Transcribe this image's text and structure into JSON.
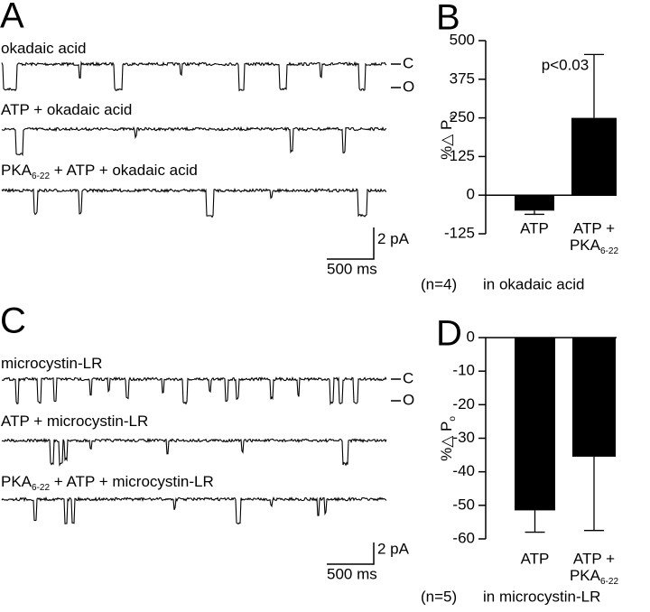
{
  "panel_labels": [
    "A",
    "B",
    "C",
    "D"
  ],
  "traces": [
    {
      "trace_labels": [
        [
          "okadaic acid"
        ],
        [
          "ATP + okadaic acid"
        ],
        [
          "PKA",
          "6-22",
          " + ATP + okadaic acid"
        ]
      ],
      "state_labels": [
        "C",
        "O"
      ],
      "scale": {
        "current": "2 pA",
        "time": "500 ms"
      }
    },
    {
      "trace_labels": [
        [
          "microcystin-LR"
        ],
        [
          "ATP + microcystin-LR"
        ],
        [
          "PKA",
          "6-22",
          " + ATP + microcystin-LR"
        ]
      ],
      "state_labels": [
        "C",
        "O"
      ],
      "scale": {
        "current": "2 pA",
        "time": "500 ms"
      }
    }
  ],
  "chart_data": [
    {
      "type": "bar",
      "categories": [
        [
          "ATP"
        ],
        [
          "ATP +",
          "PKA",
          "6-22"
        ]
      ],
      "values": [
        -50,
        250
      ],
      "errors": [
        12,
        205
      ],
      "color": "#000000",
      "ylabel": [
        "%△ P",
        "o"
      ],
      "ylim": [
        -125,
        500
      ],
      "yticks": [
        -125,
        0,
        125,
        250,
        375,
        500
      ],
      "annotation": "p<0.03",
      "footer": [
        "(n=4)",
        "in okadaic acid"
      ]
    },
    {
      "type": "bar",
      "categories": [
        [
          "ATP"
        ],
        [
          "ATP +",
          "PKA",
          "6-22"
        ]
      ],
      "values": [
        -51.5,
        -35.5
      ],
      "errors": [
        6.5,
        22
      ],
      "color": "#000000",
      "ylabel": [
        "%△ P",
        "o"
      ],
      "ylim": [
        -60,
        0
      ],
      "yticks": [
        0,
        -10,
        -20,
        -30,
        -40,
        -50,
        -60
      ],
      "footer": [
        "(n=5)",
        "in microcystin-LR"
      ]
    }
  ]
}
